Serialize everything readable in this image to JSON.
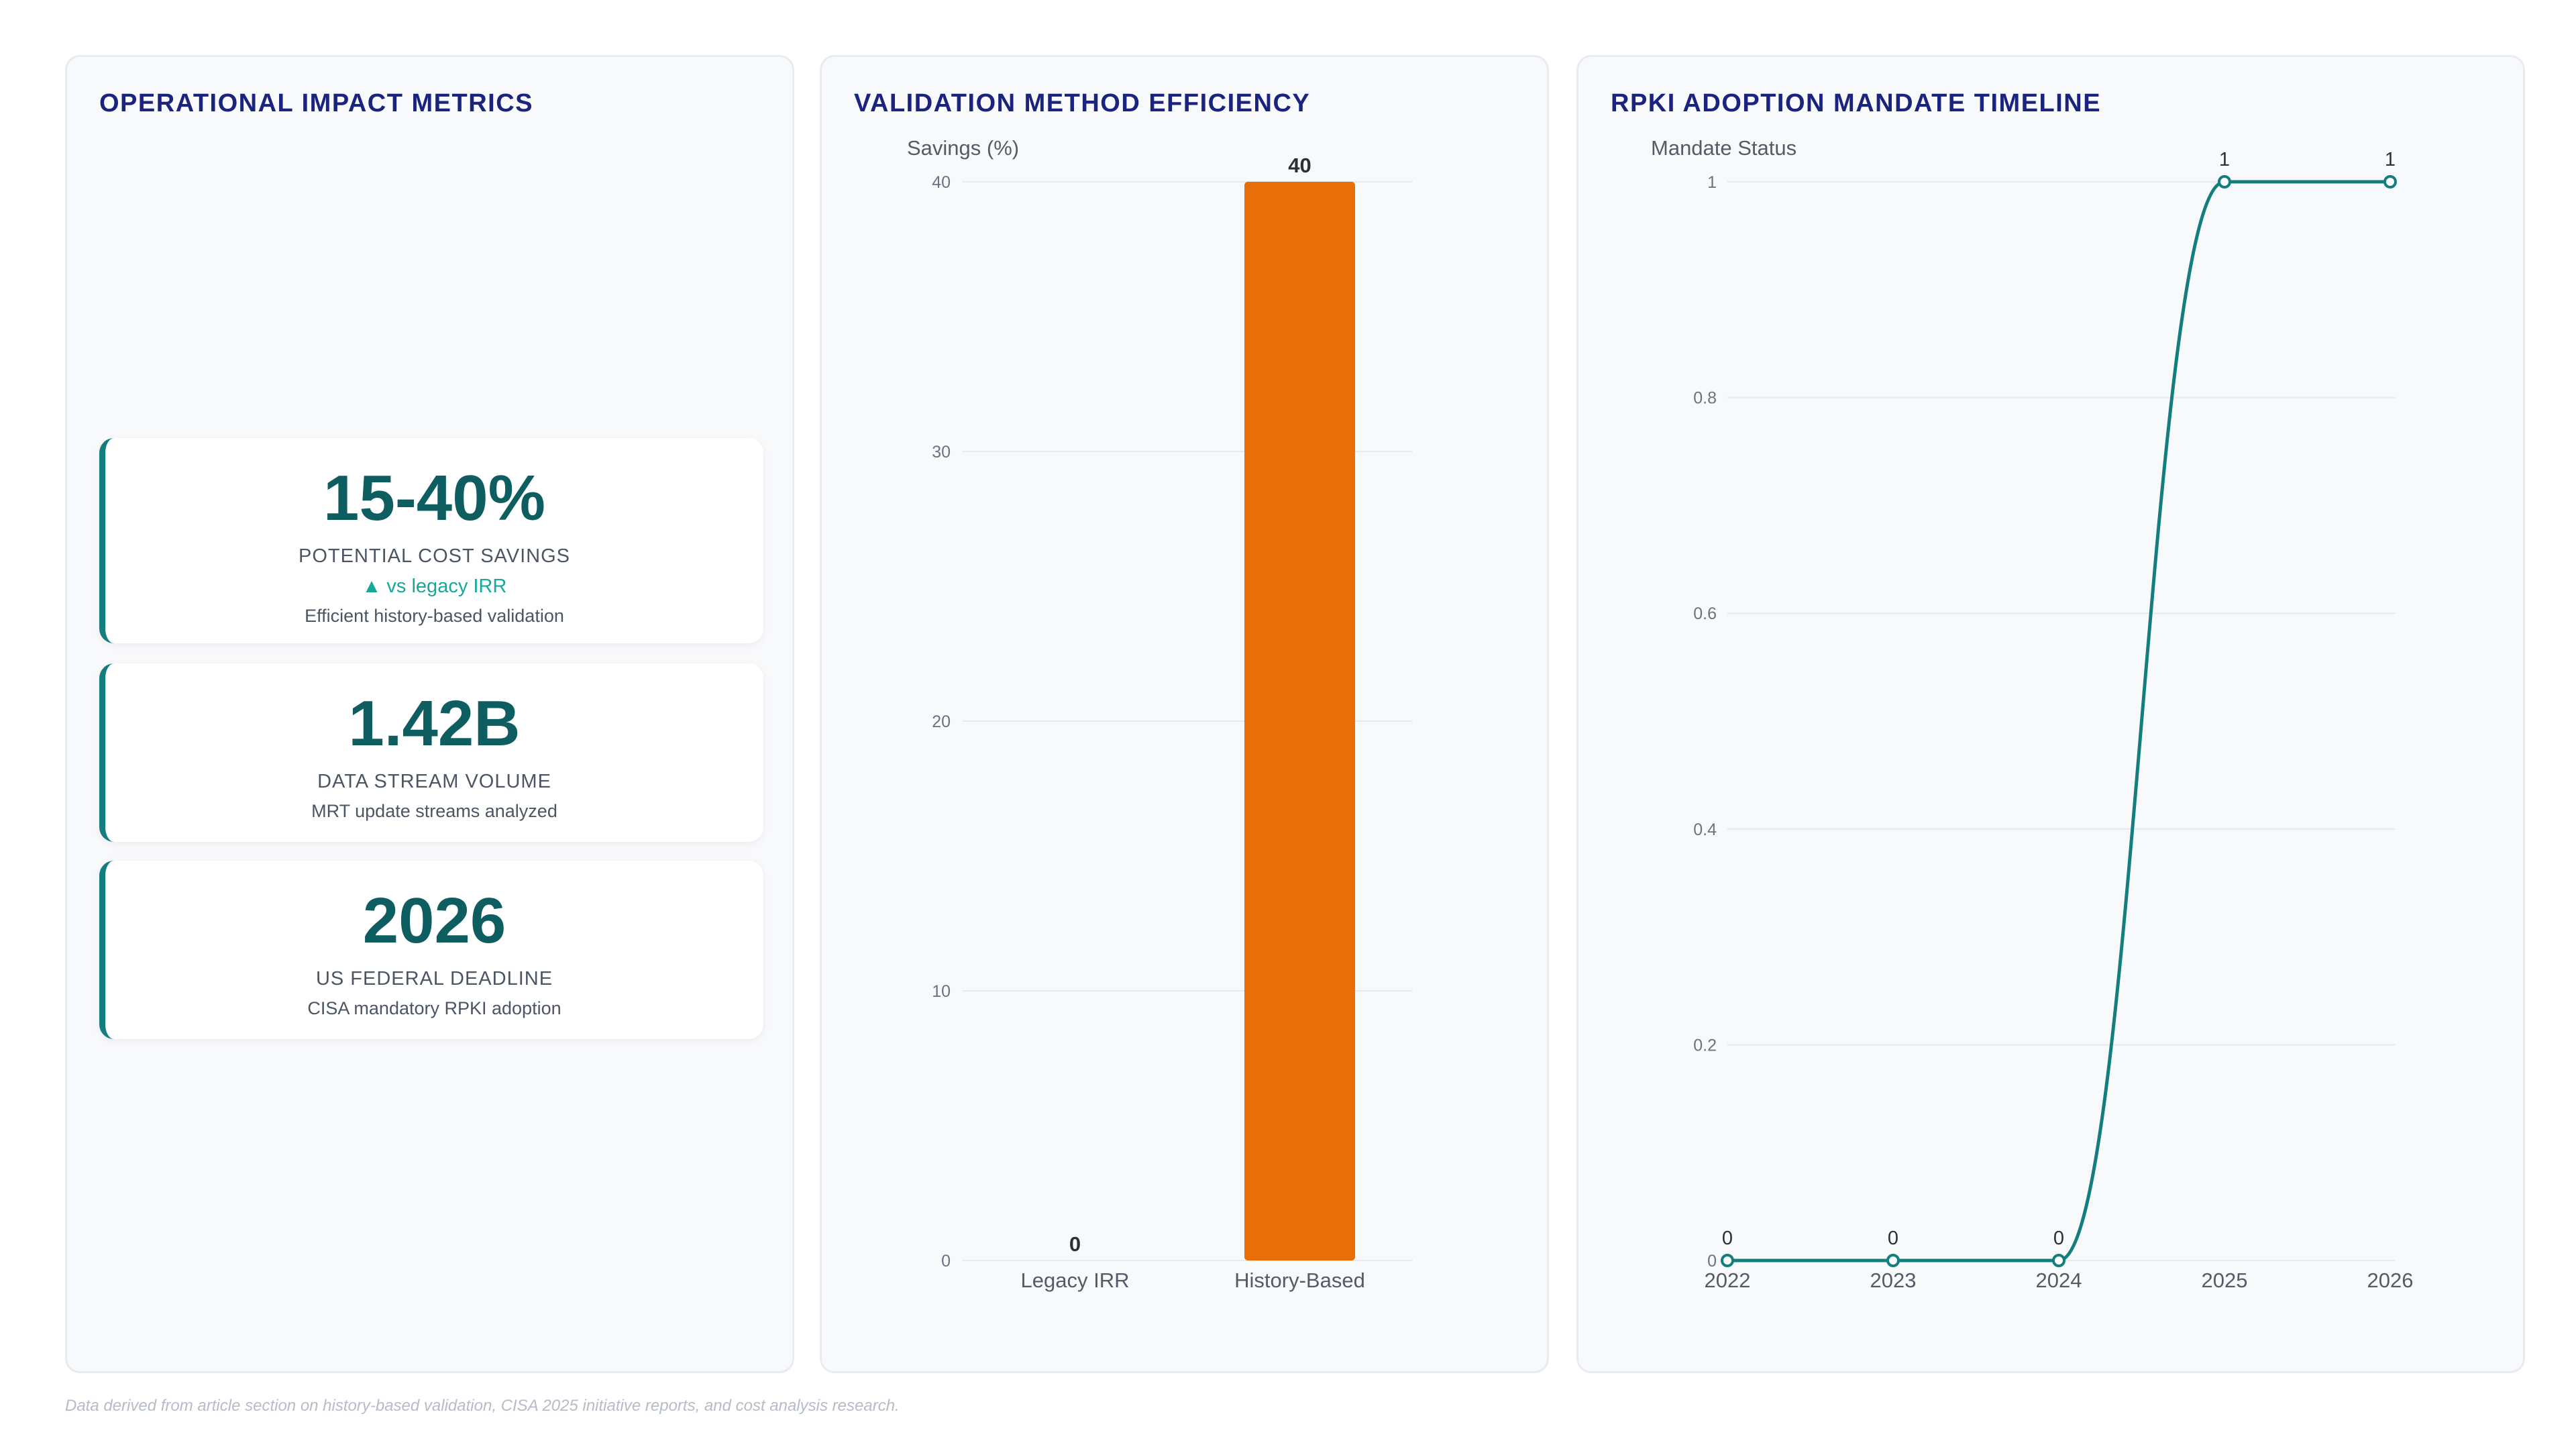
{
  "metrics_panel": {
    "title": "OPERATIONAL IMPACT METRICS",
    "cards": [
      {
        "value": "15-40%",
        "label": "POTENTIAL COST SAVINGS",
        "trend": "▲ vs legacy IRR",
        "sub": "Efficient history-based validation"
      },
      {
        "value": "1.42B",
        "label": "DATA STREAM VOLUME",
        "sub": "MRT update streams analyzed"
      },
      {
        "value": "2026",
        "label": "US FEDERAL DEADLINE",
        "sub": "CISA mandatory RPKI adoption"
      }
    ]
  },
  "bar_panel": {
    "title": "VALIDATION METHOD EFFICIENCY"
  },
  "line_panel": {
    "title": "RPKI ADOPTION MANDATE TIMELINE"
  },
  "footnote": "Data derived from article section on history-based validation, CISA 2025 initiative reports, and cost analysis research.",
  "colors": {
    "accent": "#147d80",
    "bar": "#e86e0a",
    "title": "#1a237e",
    "trend": "#16a99a"
  },
  "chart_data": [
    {
      "type": "bar",
      "title": "VALIDATION METHOD EFFICIENCY",
      "ylabel": "Savings (%)",
      "categories": [
        "Legacy IRR",
        "History-Based"
      ],
      "values": [
        0,
        40
      ],
      "data_labels": [
        "0",
        "40"
      ],
      "ylim": [
        0,
        40
      ],
      "yticks": [
        0,
        10,
        20,
        30,
        40
      ],
      "grid": true,
      "color": "#e86e0a"
    },
    {
      "type": "line",
      "title": "RPKI ADOPTION MANDATE TIMELINE",
      "ylabel": "Mandate Status",
      "x": [
        "2022",
        "2023",
        "2024",
        "2025",
        "2026"
      ],
      "y": [
        0,
        0,
        0,
        1,
        1
      ],
      "data_labels": [
        "0",
        "0",
        "0",
        "1",
        "1"
      ],
      "ylim": [
        0,
        1
      ],
      "yticks": [
        "0",
        "0.2",
        "0.4",
        "0.6",
        "0.8",
        "1"
      ],
      "grid": true,
      "color": "#147d80"
    }
  ]
}
